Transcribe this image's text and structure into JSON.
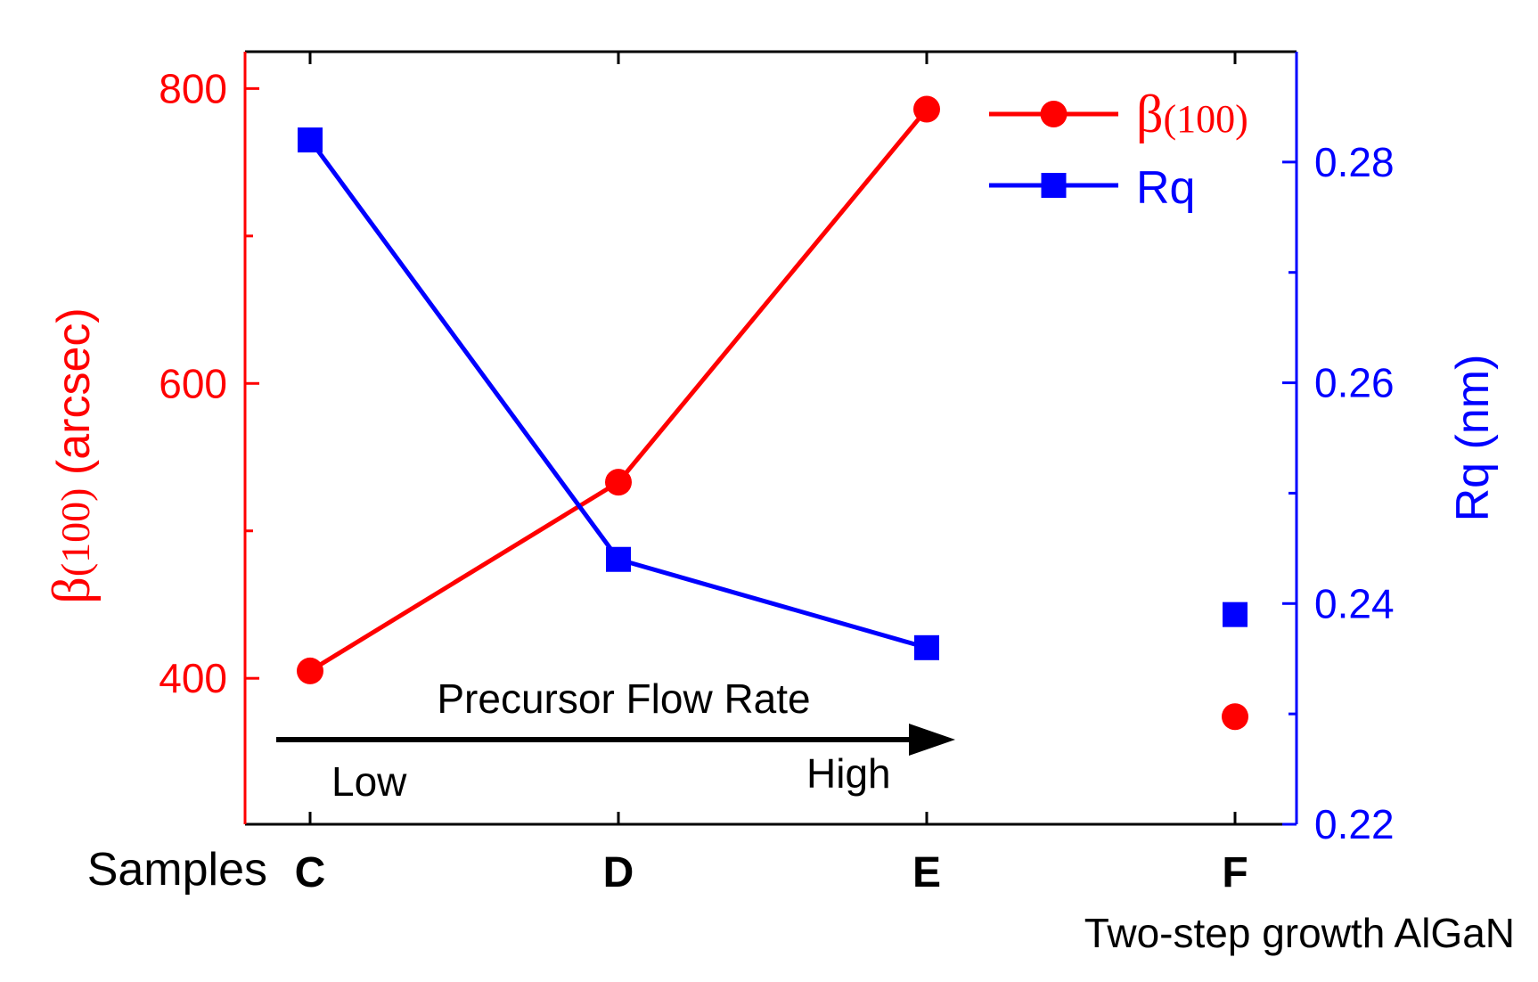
{
  "chart_data": {
    "type": "line",
    "categories": [
      "C",
      "D",
      "E",
      "F"
    ],
    "x_axis_prefix": "Samples",
    "x_note": "Two-step growth AlGaN",
    "series": [
      {
        "name": "β(100)",
        "axis": "left",
        "color": "#ff0000",
        "marker": "circle",
        "values": [
          405,
          533,
          786,
          374
        ],
        "connected_upto": 3
      },
      {
        "name": "Rq",
        "axis": "right",
        "color": "#0000ff",
        "marker": "square",
        "values": [
          0.282,
          0.244,
          0.236,
          0.239
        ],
        "connected_upto": 3
      }
    ],
    "y_left": {
      "label_symbol": "β",
      "label_sub": "(100)",
      "label_rest": " (arcsec)",
      "ticks": [
        400,
        600,
        800
      ],
      "ylim": [
        301,
        825
      ],
      "color": "#ff0000"
    },
    "y_right": {
      "label": "Rq (nm)",
      "ticks": [
        0.22,
        0.24,
        0.26,
        0.28
      ],
      "ylim": [
        0.22,
        0.29
      ],
      "color": "#0000ff"
    },
    "annotation": {
      "text": "Precursor Flow Rate",
      "low": "Low",
      "high": "High"
    },
    "legend": {
      "placement": "top-right"
    }
  }
}
